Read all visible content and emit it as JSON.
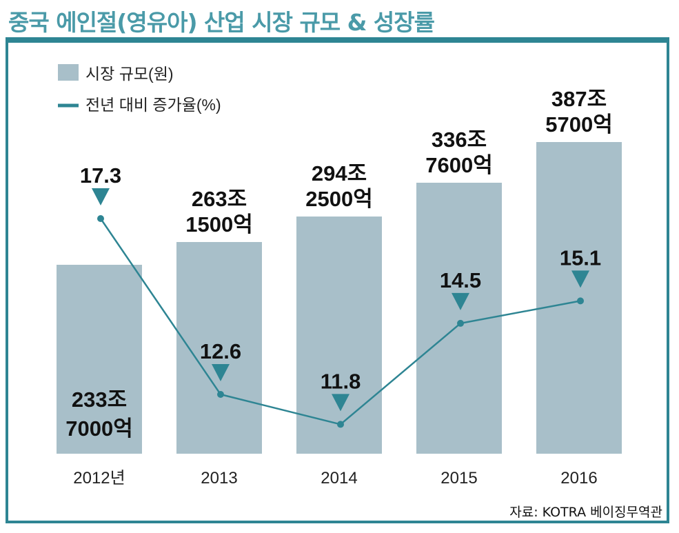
{
  "title": "중국 에인절(영유아) 산업 시장 규모 & 성장률",
  "source": "자료: KOTRA 베이징무역관",
  "colors": {
    "bar": "#a8bfc9",
    "line": "#2e8593",
    "title": "#4a9aa8",
    "frame": "#2e8593"
  },
  "chart_data": {
    "type": "bar",
    "categories": [
      "2012년",
      "2013",
      "2014",
      "2015",
      "2016"
    ],
    "series": [
      {
        "name": "시장 규모(원)",
        "type": "bar",
        "values": [
          2337000,
          2631500,
          2942500,
          3367600,
          3875700
        ],
        "labels": [
          [
            "233조",
            "7000억"
          ],
          [
            "263조",
            "1500억"
          ],
          [
            "294조",
            "2500억"
          ],
          [
            "336조",
            "7600억"
          ],
          [
            "387조",
            "5700억"
          ]
        ]
      },
      {
        "name": "전년 대비 증가율(%)",
        "type": "line",
        "values": [
          17.3,
          12.6,
          11.8,
          14.5,
          15.1
        ],
        "labels": [
          "17.3",
          "12.6",
          "11.8",
          "14.5",
          "15.1"
        ]
      }
    ],
    "legend": [
      {
        "label": "시장 규모(원)",
        "icon": "bar-swatch"
      },
      {
        "label": "전년 대비 증가율(%)",
        "icon": "line-swatch"
      }
    ],
    "legend_position": "top-left"
  }
}
